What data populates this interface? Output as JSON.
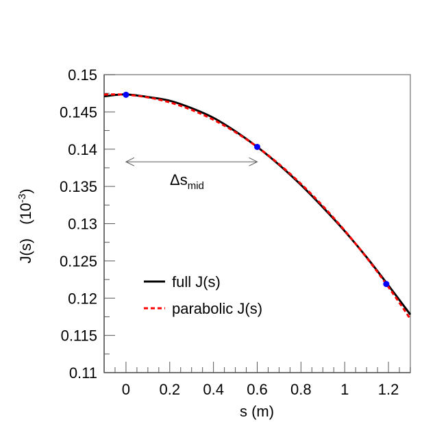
{
  "chart_data": {
    "type": "line",
    "xlabel": "s (m)",
    "ylabel": "J(s)",
    "ylabel_unit": "(10",
    "ylabel_unit_exp": "-3",
    "ylabel_unit_close": ")",
    "xlim": [
      -0.1,
      1.3
    ],
    "ylim": [
      0.11,
      0.15
    ],
    "x_ticks": [
      "0",
      "0.2",
      "0.4",
      "0.6",
      "0.8",
      "1",
      "1.2"
    ],
    "y_ticks": [
      "0.11",
      "0.115",
      "0.12",
      "0.125",
      "0.13",
      "0.135",
      "0.14",
      "0.145",
      "0.15"
    ],
    "grid": false,
    "legend_position": "lower-left",
    "series": [
      {
        "name": "full J(s)",
        "color": "#000000",
        "style": "solid",
        "x": [
          -0.1,
          0,
          0.1,
          0.2,
          0.3,
          0.4,
          0.5,
          0.6,
          0.7,
          0.8,
          0.9,
          1.0,
          1.1,
          1.2,
          1.3
        ],
        "y": [
          0.1471,
          0.14735,
          0.147,
          0.1465,
          0.1455,
          0.1442,
          0.1424,
          0.1403,
          0.1379,
          0.1352,
          0.1322,
          0.129,
          0.1255,
          0.1217,
          0.1178
        ]
      },
      {
        "name": "parabolic J(s)",
        "color": "#ff0000",
        "style": "dashed",
        "quadratic": [
          0.1473,
          -0.00183,
          -0.0164
        ]
      }
    ],
    "markers": {
      "color": "#0000ff",
      "x": [
        0,
        0.6,
        1.19
      ],
      "y": [
        0.1473,
        0.1403,
        0.1219
      ]
    },
    "annotation": {
      "text": "Δs",
      "subscript": "mid",
      "arrow_from_x": 0,
      "arrow_to_x": 0.6,
      "arrow_y": 0.1383
    }
  }
}
